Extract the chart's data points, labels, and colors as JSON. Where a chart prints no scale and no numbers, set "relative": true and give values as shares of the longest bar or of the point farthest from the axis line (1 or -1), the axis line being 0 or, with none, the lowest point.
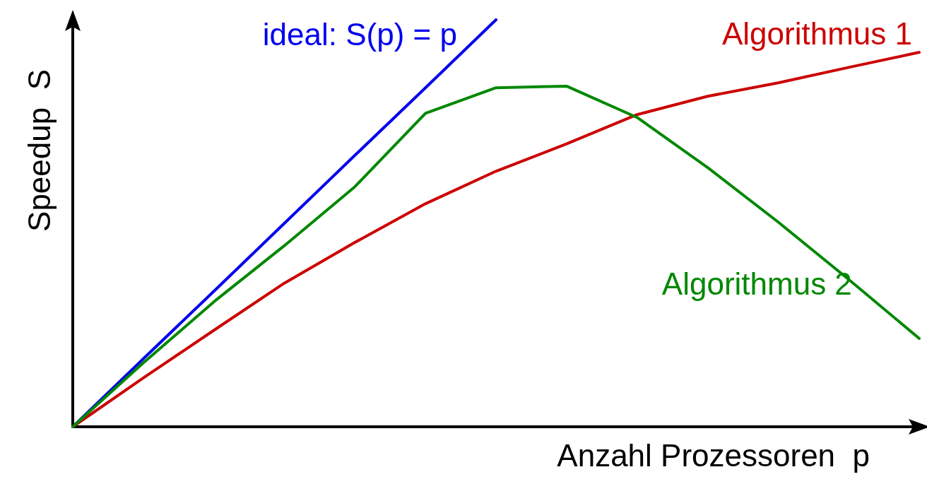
{
  "chart_data": {
    "type": "line",
    "relative": true,
    "xlabel": "Anzahl Prozessoren  p",
    "ylabel": "Speedup  S",
    "grid": false,
    "legend": false,
    "marker": "none",
    "line_style": "solid",
    "categories": [
      null,
      null,
      null,
      null,
      null,
      null,
      null,
      null,
      null,
      null,
      null,
      null,
      null
    ],
    "series": [
      {
        "name": "ideal: S(p) = p",
        "color": "#0000ee",
        "values": [
          0,
          0.167,
          0.333,
          0.5,
          0.667,
          0.833,
          1,
          null,
          null,
          null,
          null,
          null,
          null
        ]
      },
      {
        "name": "Algorithmus 1",
        "color": "#cc0000",
        "values": [
          0,
          0.12,
          0.237,
          0.353,
          0.453,
          0.548,
          0.628,
          0.695,
          0.767,
          0.812,
          0.845,
          0.883,
          0.92
        ]
      },
      {
        "name": "Algorithmus 2",
        "color": "#008800",
        "values": [
          0,
          0.157,
          0.307,
          0.445,
          0.59,
          0.77,
          0.833,
          0.837,
          0.76,
          0.637,
          0.503,
          0.362,
          0.217
        ]
      }
    ]
  }
}
